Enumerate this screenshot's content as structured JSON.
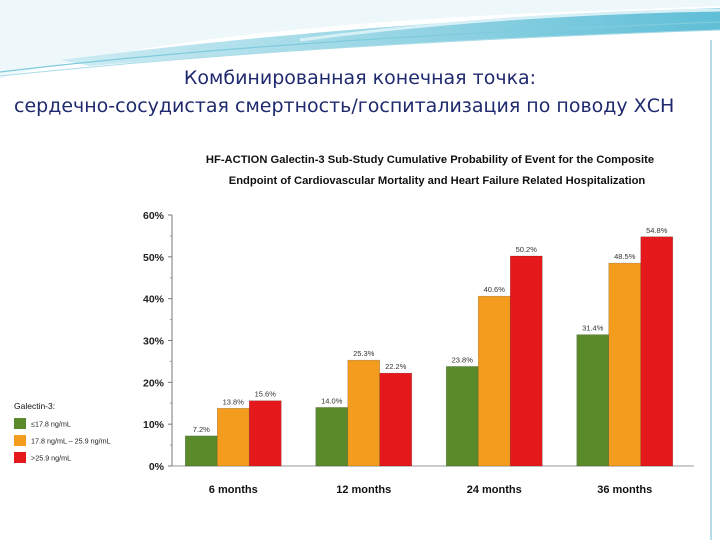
{
  "slide": {
    "title_line1": "Комбинированная конечная точка:",
    "title_line2": "сердечно-сосудистая смертность/госпитализация по поводу ХСН"
  },
  "colors": {
    "series": [
      "#5a8a2a",
      "#f39c1e",
      "#e5191c"
    ],
    "title": "#1f2a6e",
    "accent": "#2aa9c9"
  },
  "chart_data": {
    "type": "bar",
    "title_line1": "HF-ACTION Galectin-3 Sub-Study Cumulative Probability of Event for the Composite",
    "title_line2": "Endpoint of Cardiovascular Mortality and Heart Failure Related Hospitalization",
    "categories": [
      "6 months",
      "12 months",
      "24 months",
      "36 months"
    ],
    "series": [
      {
        "name": "≤17.8 ng/mL",
        "values": [
          7.2,
          14.0,
          23.8,
          31.4
        ],
        "labels": [
          "7.2%",
          "14.0%",
          "23.8%",
          "31.4%"
        ]
      },
      {
        "name": "17.8 ng/mL – 25.9 ng/mL",
        "values": [
          13.8,
          25.3,
          40.6,
          48.5
        ],
        "labels": [
          "13.8%",
          "25.3%",
          "40.6%",
          "48.5%"
        ]
      },
      {
        "name": ">25.9 ng/mL",
        "values": [
          15.6,
          22.2,
          50.2,
          54.8
        ],
        "labels": [
          "15.6%",
          "22.2%",
          "50.2%",
          "54.8%"
        ]
      }
    ],
    "ylim": [
      0,
      60
    ],
    "yticks": [
      0,
      10,
      20,
      30,
      40,
      50,
      60
    ],
    "ytick_labels": [
      "0%",
      "10%",
      "20%",
      "30%",
      "40%",
      "50%",
      "60%"
    ],
    "legend_title": "Galectin-3:",
    "legend_position": "left"
  }
}
